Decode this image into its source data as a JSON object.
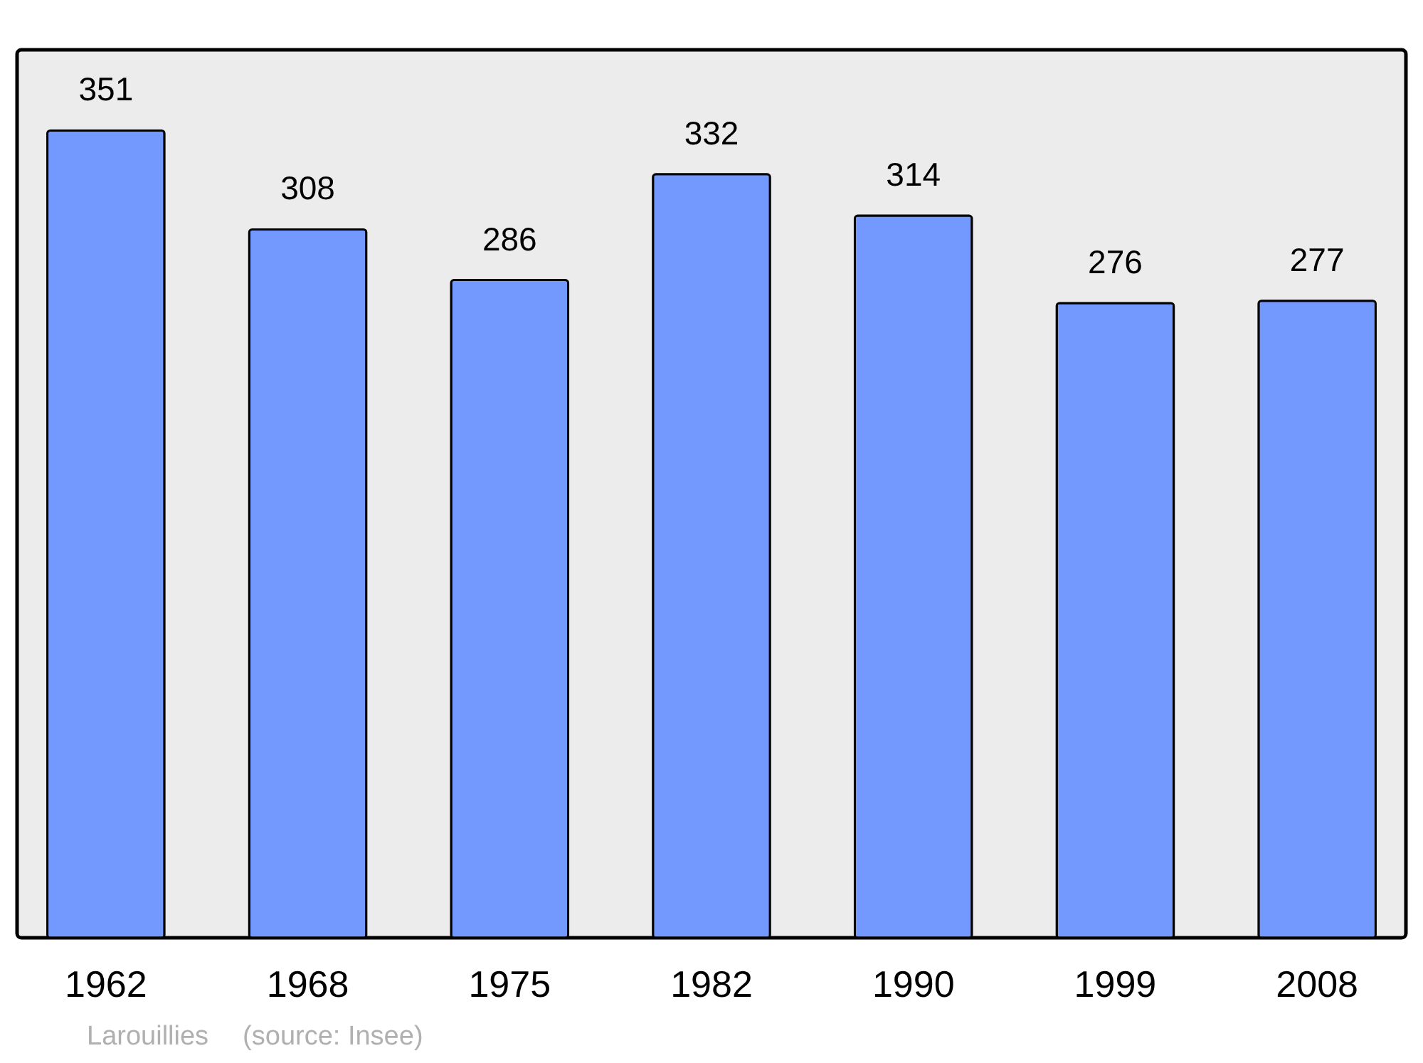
{
  "chart_data": {
    "type": "bar",
    "categories": [
      "1962",
      "1968",
      "1975",
      "1982",
      "1990",
      "1999",
      "2008"
    ],
    "values": [
      351,
      308,
      286,
      332,
      314,
      276,
      277
    ],
    "color": "#7399ff",
    "data_labels": true,
    "annotations": [
      "Larouillies",
      "(source: Insee)"
    ]
  }
}
